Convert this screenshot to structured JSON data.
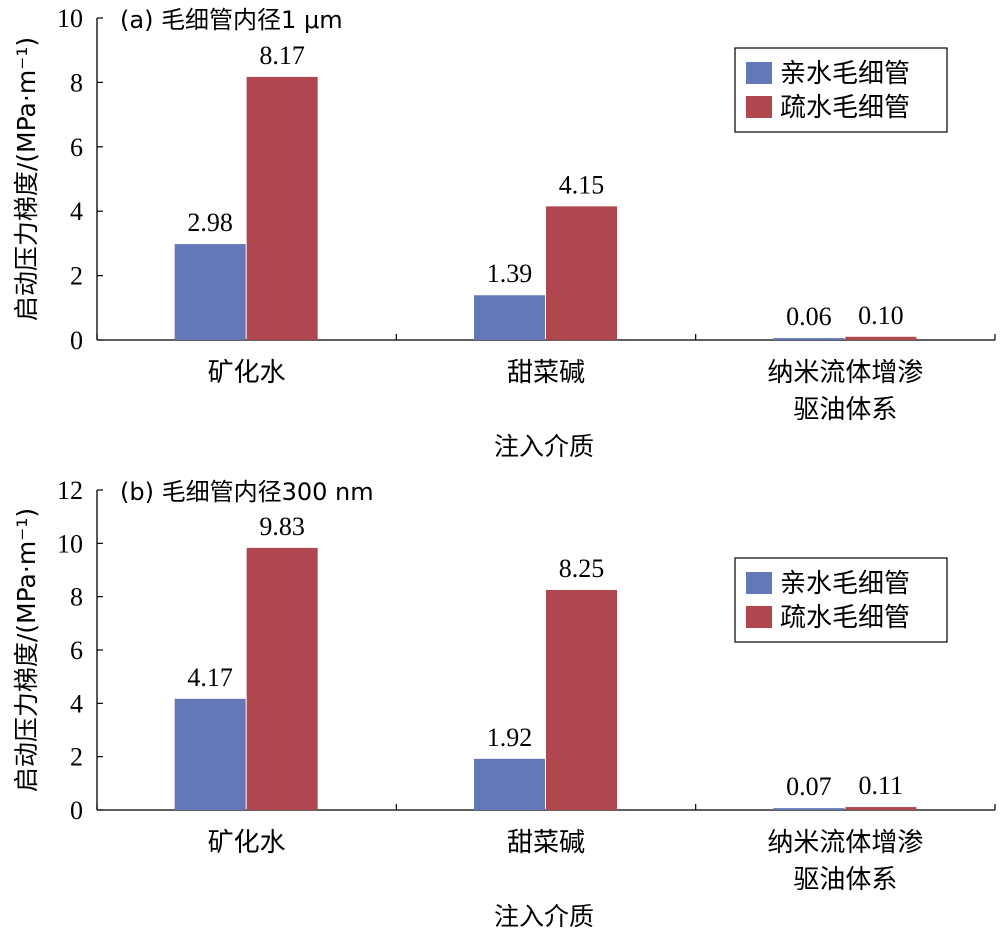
{
  "colors": {
    "hydrophilic": "#6478b8",
    "hydrophobic": "#b0474e"
  },
  "chart_data": [
    {
      "type": "bar",
      "title": "(a) 毛细管内径1 μm",
      "xlabel": "注入介质",
      "ylabel": "启动压力梯度/(MPa·m⁻¹)",
      "ylim": [
        0,
        10
      ],
      "yticks": [
        0,
        2,
        4,
        6,
        8,
        10
      ],
      "categories": [
        "矿化水",
        "甜菜碱",
        "纳米流体增渗\n驱油体系"
      ],
      "series": [
        {
          "name": "亲水毛细管",
          "values": [
            2.98,
            1.39,
            0.06
          ],
          "labels": [
            "2.98",
            "1.39",
            "0.06"
          ]
        },
        {
          "name": "疏水毛细管",
          "values": [
            8.17,
            4.15,
            0.1
          ],
          "labels": [
            "8.17",
            "4.15",
            "0.10"
          ]
        }
      ],
      "legend": "top-right",
      "grid": false
    },
    {
      "type": "bar",
      "title": "(b) 毛细管内径300 nm",
      "xlabel": "注入介质",
      "ylabel": "启动压力梯度/(MPa·m⁻¹)",
      "ylim": [
        0,
        12
      ],
      "yticks": [
        0,
        2,
        4,
        6,
        8,
        10,
        12
      ],
      "categories": [
        "矿化水",
        "甜菜碱",
        "纳米流体增渗\n驱油体系"
      ],
      "series": [
        {
          "name": "亲水毛细管",
          "values": [
            4.17,
            1.92,
            0.07
          ],
          "labels": [
            "4.17",
            "1.92",
            "0.07"
          ]
        },
        {
          "name": "疏水毛细管",
          "values": [
            9.83,
            8.25,
            0.11
          ],
          "labels": [
            "9.83",
            "8.25",
            "0.11"
          ]
        }
      ],
      "legend": "top-right",
      "grid": false
    }
  ]
}
